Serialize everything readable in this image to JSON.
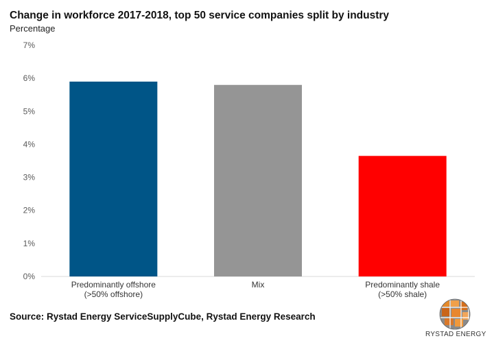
{
  "chart_data": {
    "type": "bar",
    "title": "Change in workforce 2017-2018, top 50 service companies split by industry",
    "subtitle": "Percentage",
    "categories": [
      [
        "Predominantly offshore",
        "(>50% offshore)"
      ],
      [
        "Mix"
      ],
      [
        "Predominantly shale",
        "(>50% shale)"
      ]
    ],
    "values": [
      5.9,
      5.8,
      3.65
    ],
    "colors": [
      "#005587",
      "#959595",
      "#ff0000"
    ],
    "ylim": [
      0,
      7
    ],
    "yticks": [
      "0%",
      "1%",
      "2%",
      "3%",
      "4%",
      "5%",
      "6%",
      "7%"
    ],
    "grid": false,
    "legend": "none"
  },
  "source": "Source: Rystad Energy ServiceSupplyCube, Rystad Energy Research",
  "logo": {
    "text": "RYSTAD ENERGY",
    "icon": "rystad-globe-logo",
    "colors": [
      "#e07a1f",
      "#7a7a7a"
    ]
  }
}
